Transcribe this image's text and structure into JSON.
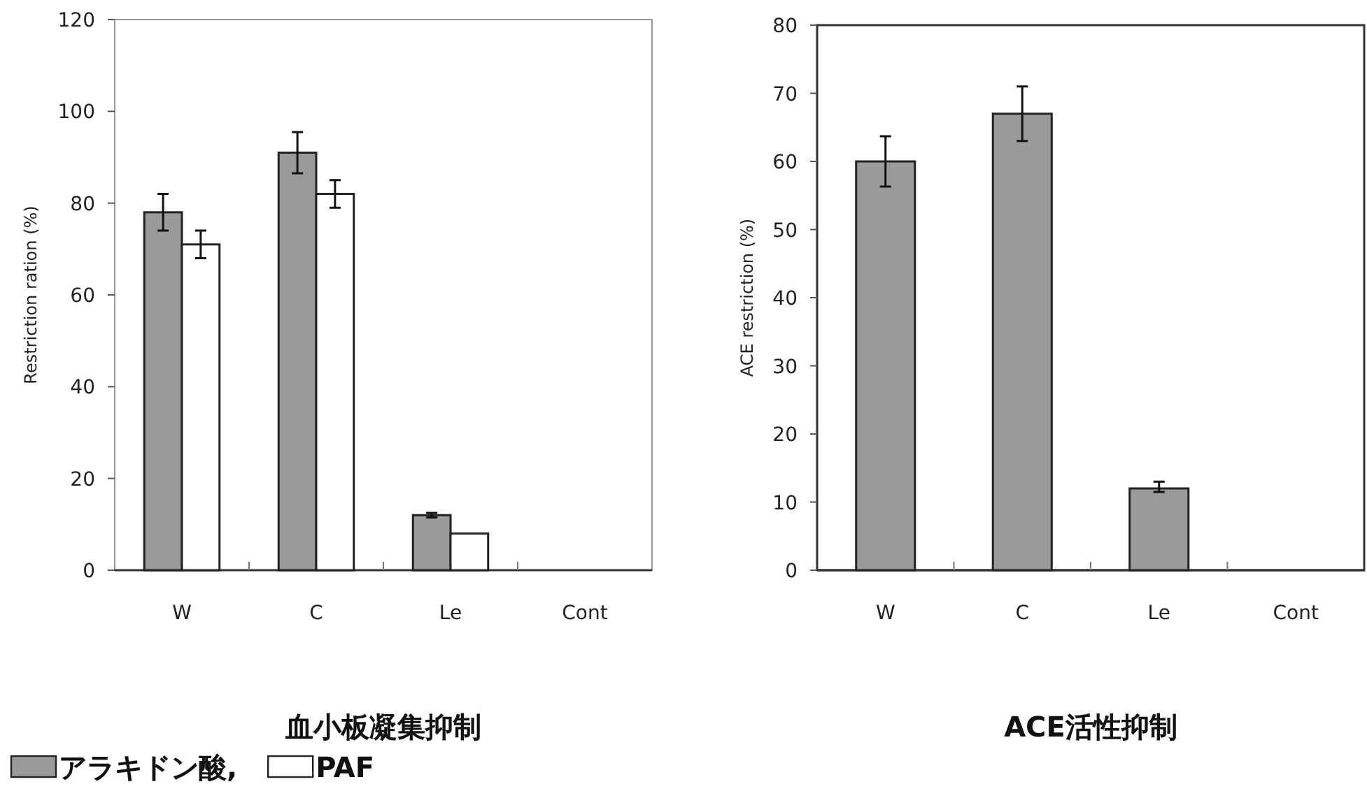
{
  "chart_data": [
    {
      "type": "bar",
      "title": "血小板凝集抑制",
      "ylabel": "Restriction ration (%)",
      "categories": [
        "W",
        "C",
        "Le",
        "Cont"
      ],
      "ylim": [
        0,
        120
      ],
      "yticks": [
        0,
        20,
        40,
        60,
        80,
        100,
        120
      ],
      "grid": false,
      "legend": "bottom",
      "series": [
        {
          "name": "アラキドン酸,",
          "color": "#9a9a9a",
          "values": [
            78,
            91,
            12,
            0
          ],
          "errors": [
            4,
            4.5,
            0.5,
            null
          ]
        },
        {
          "name": "PAF",
          "color": "#ffffff",
          "values": [
            71,
            82,
            8,
            0
          ],
          "errors": [
            3,
            3,
            null,
            null
          ]
        }
      ]
    },
    {
      "type": "bar",
      "title": "ACE活性抑制",
      "ylabel": "ACE restriction (%)",
      "categories": [
        "W",
        "C",
        "Le",
        "Cont"
      ],
      "ylim": [
        0,
        80
      ],
      "yticks": [
        0,
        10,
        20,
        30,
        40,
        50,
        60,
        70,
        80
      ],
      "grid": false,
      "series": [
        {
          "color": "#9a9a9a",
          "values": [
            60,
            67,
            12,
            0
          ],
          "errors": [
            3.7,
            4,
            [
              11.5,
              13
            ],
            null
          ]
        }
      ]
    }
  ]
}
